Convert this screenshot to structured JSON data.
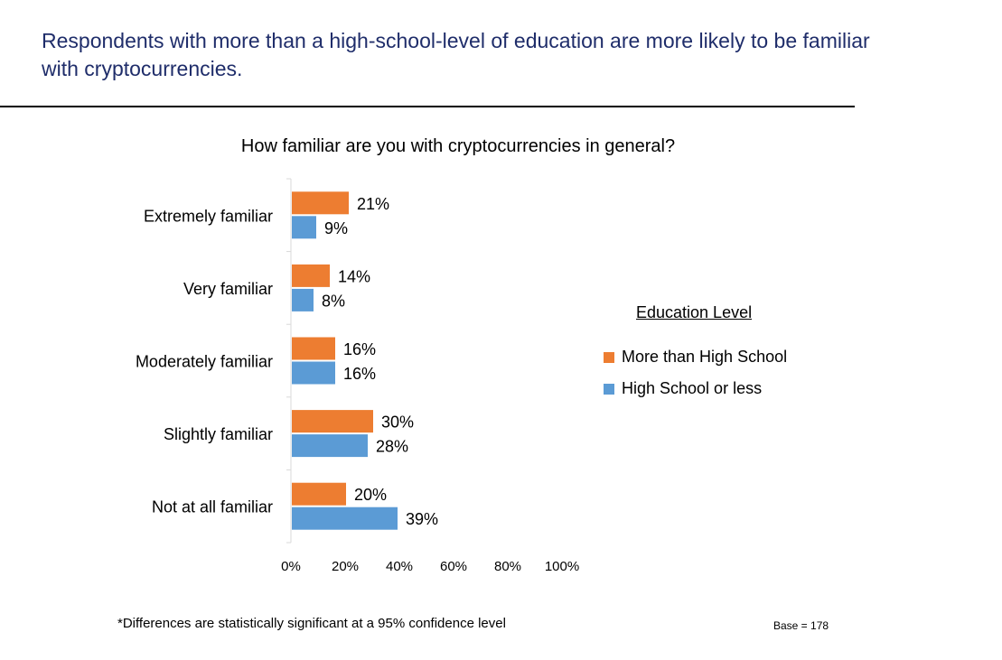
{
  "headline": "Respondents with more than a high-school-level of education are more likely to be familiar with cryptocurrencies.",
  "footnote": "*Differences are statistically significant at a 95% confidence level",
  "base": "Base = 178",
  "legend": {
    "title": "Education Level",
    "items": [
      {
        "label": "More than High School",
        "color": "#ed7d31"
      },
      {
        "label": "High School or less",
        "color": "#5b9bd5"
      }
    ]
  },
  "chart_data": {
    "type": "bar",
    "orientation": "horizontal",
    "title": "How familiar are you with cryptocurrencies in general?",
    "categories": [
      "Extremely familiar",
      "Very familiar",
      "Moderately familiar",
      "Slightly familiar",
      "Not at all familiar"
    ],
    "series": [
      {
        "name": "More than High School",
        "color": "#ed7d31",
        "values": [
          21,
          14,
          16,
          30,
          20
        ],
        "labels": [
          "21%",
          "14%",
          "16%",
          "30%",
          "20%"
        ]
      },
      {
        "name": "High School or less",
        "color": "#5b9bd5",
        "values": [
          9,
          8,
          16,
          28,
          39
        ],
        "labels": [
          "9%",
          "8%",
          "16%",
          "28%",
          "39%"
        ]
      }
    ],
    "xlim": [
      0,
      100
    ],
    "xticks": [
      "0%",
      "20%",
      "40%",
      "60%",
      "80%",
      "100%"
    ],
    "grid": false,
    "legend_position": "right"
  }
}
